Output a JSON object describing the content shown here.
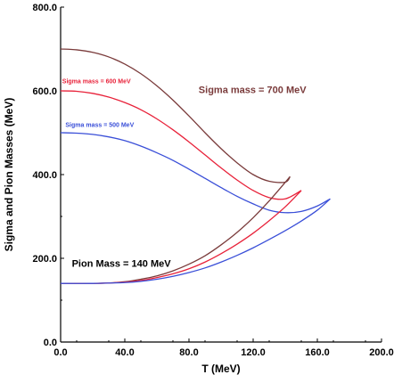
{
  "chart_data": {
    "type": "line",
    "xlabel": "T (MeV)",
    "ylabel": "Sigma and Pion Masses (MeV)",
    "xlim": [
      0,
      200
    ],
    "ylim": [
      0,
      800
    ],
    "x_ticks": [
      "0.0",
      "40.0",
      "80.0",
      "120.0",
      "160.0",
      "200.0"
    ],
    "y_ticks": [
      "0.0",
      "200.0",
      "400.0",
      "600.0",
      "800.0"
    ],
    "grid": false,
    "legend": "none",
    "series": [
      {
        "color": "#7a3b3b",
        "x": [
          0,
          10,
          20,
          30,
          40,
          50,
          60,
          70,
          80,
          90,
          100,
          110,
          120,
          130,
          140,
          143
        ],
        "y": [
          700,
          698,
          692,
          681,
          664,
          641,
          612,
          578,
          540,
          500,
          462,
          428,
          400,
          384,
          382,
          395
        ]
      },
      {
        "color": "#e8223a",
        "x": [
          0,
          10,
          20,
          30,
          40,
          50,
          60,
          70,
          80,
          90,
          100,
          110,
          120,
          130,
          140,
          150
        ],
        "y": [
          600,
          599,
          594,
          585,
          572,
          555,
          533,
          507,
          478,
          447,
          416,
          387,
          362,
          345,
          342,
          362
        ]
      },
      {
        "color": "#3a4fd8",
        "x": [
          0,
          10,
          20,
          30,
          40,
          50,
          60,
          70,
          80,
          90,
          100,
          110,
          120,
          130,
          140,
          150,
          160,
          168
        ],
        "y": [
          500,
          499,
          496,
          490,
          481,
          468,
          452,
          434,
          413,
          391,
          369,
          348,
          330,
          315,
          309,
          312,
          325,
          342
        ]
      },
      {
        "color": "#7a3b3b",
        "x": [
          0,
          20,
          30,
          40,
          50,
          60,
          70,
          80,
          90,
          100,
          110,
          120,
          130,
          143
        ],
        "y": [
          140,
          140,
          141,
          144,
          150,
          158,
          170,
          186,
          206,
          232,
          262,
          297,
          337,
          395
        ]
      },
      {
        "color": "#e8223a",
        "x": [
          0,
          20,
          30,
          40,
          50,
          60,
          70,
          80,
          90,
          100,
          110,
          120,
          130,
          140,
          150
        ],
        "y": [
          140,
          140,
          141,
          143,
          147,
          154,
          163,
          175,
          191,
          211,
          234,
          260,
          290,
          323,
          362
        ]
      },
      {
        "color": "#3a4fd8",
        "x": [
          0,
          20,
          30,
          40,
          50,
          60,
          70,
          80,
          90,
          100,
          110,
          120,
          130,
          140,
          150,
          160,
          168
        ],
        "y": [
          140,
          140,
          141,
          142,
          145,
          150,
          157,
          166,
          177,
          191,
          207,
          225,
          245,
          266,
          289,
          315,
          342
        ]
      }
    ],
    "annotations": [
      {
        "text": "Sigma mass = 700 MeV",
        "color": "#7a3b3b",
        "x": 86,
        "y": 595,
        "size": "large"
      },
      {
        "text": "Sigma mass = 600 MeV",
        "color": "#e8223a",
        "x": 1,
        "y": 618,
        "size": "small"
      },
      {
        "text": "Sigma mass = 500 MeV",
        "color": "#3a4fd8",
        "x": 3,
        "y": 514,
        "size": "small"
      },
      {
        "text": "Pion Mass = 140 MeV",
        "color": "#000000",
        "x": 7,
        "y": 180,
        "size": "large"
      }
    ]
  }
}
